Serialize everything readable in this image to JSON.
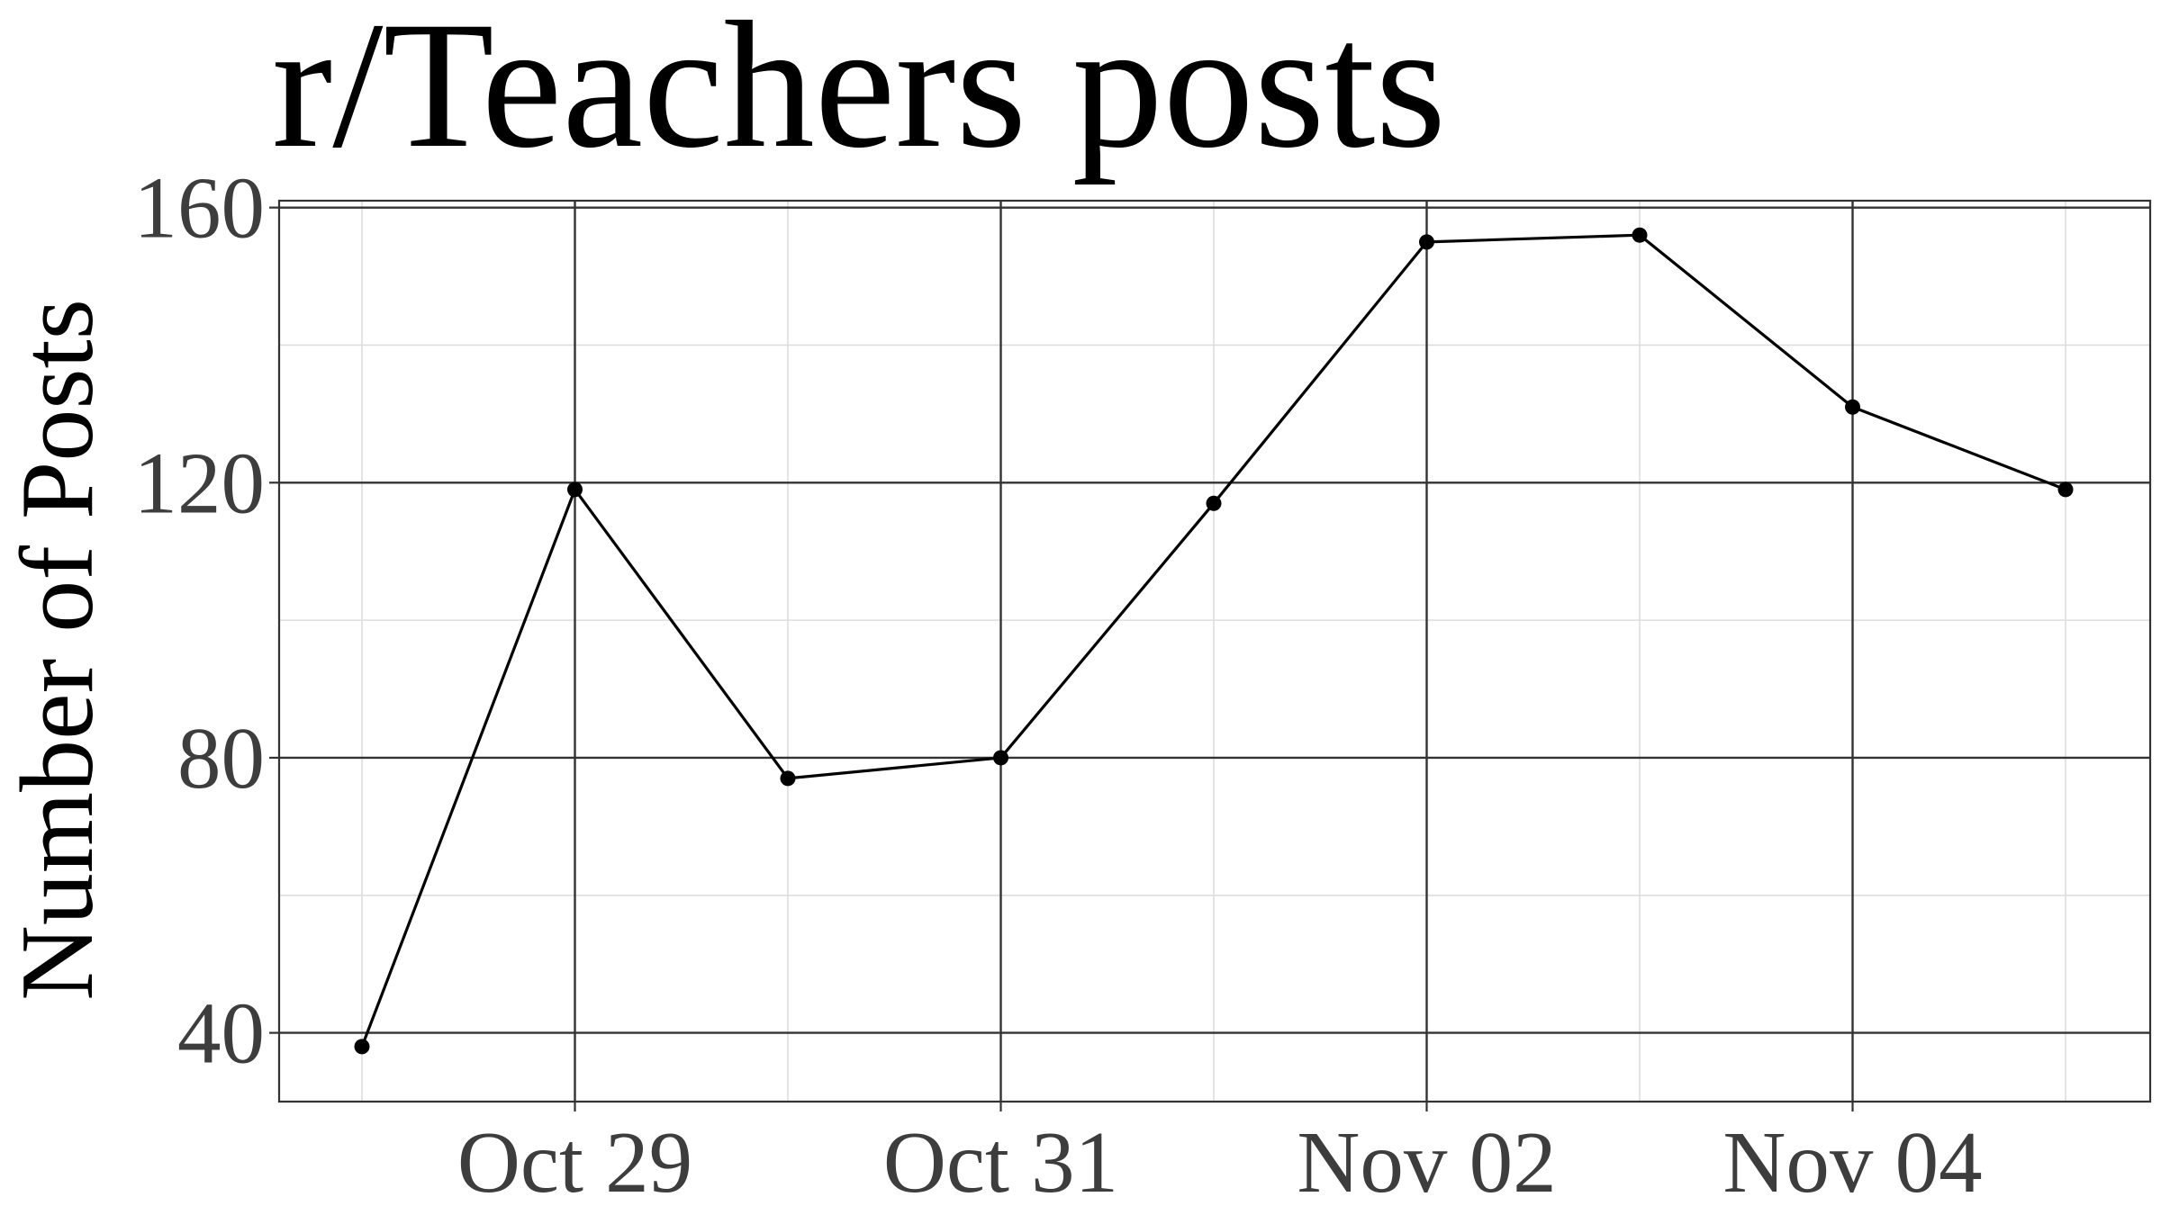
{
  "chart_data": {
    "type": "line",
    "title": "r/Teachers posts",
    "xlabel": "",
    "ylabel": "Number of Posts",
    "x": [
      "Oct 28",
      "Oct 29",
      "Oct 30",
      "Oct 31",
      "Nov 01",
      "Nov 02",
      "Nov 03",
      "Nov 04",
      "Nov 05"
    ],
    "values": [
      38,
      119,
      77,
      80,
      117,
      155,
      156,
      131,
      119
    ],
    "x_tick_labels": [
      "Oct 29",
      "Oct 31",
      "Nov 02",
      "Nov 04"
    ],
    "y_ticks": [
      40,
      80,
      120,
      160
    ],
    "ylim": [
      30,
      161
    ],
    "grid": true,
    "legend": "none",
    "colors": {
      "line": "#000000",
      "grid_major": "#333333",
      "grid_minor": "#dedede",
      "panel_border": "#333333",
      "tick_text": "#3d3d3d"
    }
  }
}
